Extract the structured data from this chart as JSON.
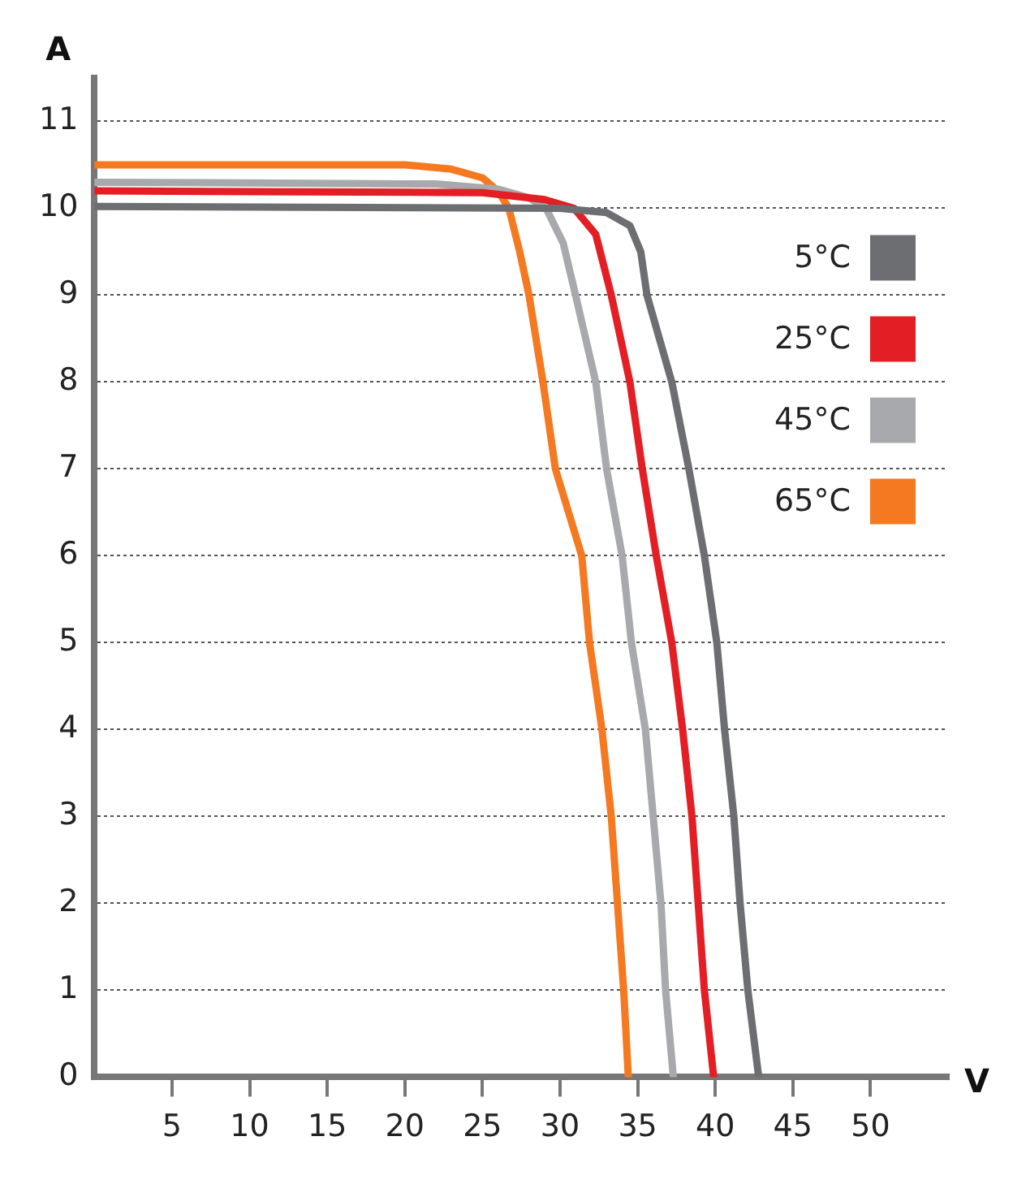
{
  "chart_data": {
    "type": "line",
    "xlabel": "V",
    "ylabel": "A",
    "xlim": [
      0,
      55
    ],
    "xticks": [
      5,
      10,
      15,
      20,
      25,
      30,
      35,
      40,
      45,
      50
    ],
    "ylim": [
      0,
      11.5
    ],
    "yticks": [
      0,
      1,
      2,
      3,
      4,
      5,
      6,
      7,
      8,
      9,
      10,
      11
    ],
    "grid": "y",
    "legend": "top right",
    "marker": "none",
    "line_style": "solid",
    "series": [
      {
        "name": "5°C",
        "color": "#6d6e71",
        "x": [
          0,
          30,
          33,
          34.5,
          35.2,
          35.6,
          37.2,
          38.3,
          39.3,
          40.1,
          40.6,
          41.2,
          41.6,
          42.1,
          42.8
        ],
        "values": [
          10.02,
          10,
          9.95,
          9.8,
          9.5,
          9,
          8,
          7,
          6,
          5,
          4,
          3,
          2,
          1,
          0
        ]
      },
      {
        "name": "25°C",
        "color": "#e31e24",
        "x": [
          0,
          25,
          29,
          30.9,
          32.3,
          33.3,
          34.5,
          35.3,
          36.2,
          37.2,
          37.9,
          38.5,
          38.9,
          39.3,
          39.9
        ],
        "values": [
          10.2,
          10.18,
          10.1,
          10,
          9.7,
          9,
          8,
          7,
          6,
          5,
          4,
          3,
          2,
          1,
          0
        ]
      },
      {
        "name": "45°C",
        "color": "#a7a9ac",
        "x": [
          0,
          22,
          26,
          28,
          29.1,
          30.2,
          31,
          32.3,
          33,
          34,
          34.6,
          35.5,
          36,
          36.5,
          36.8,
          37.3
        ],
        "values": [
          10.3,
          10.28,
          10.22,
          10.12,
          10,
          9.6,
          9,
          8,
          7,
          6,
          5,
          4,
          3,
          2,
          1,
          0
        ]
      },
      {
        "name": "65°C",
        "color": "#f47920",
        "x": [
          0,
          20,
          23,
          25,
          26,
          26.7,
          27.4,
          28,
          28.9,
          29.7,
          31.4,
          31.9,
          32.7,
          33.3,
          33.7,
          34.1,
          34.4
        ],
        "values": [
          10.5,
          10.5,
          10.45,
          10.35,
          10.2,
          10,
          9.5,
          9,
          8,
          7,
          6,
          5,
          4,
          3,
          2,
          1,
          0
        ]
      }
    ]
  }
}
